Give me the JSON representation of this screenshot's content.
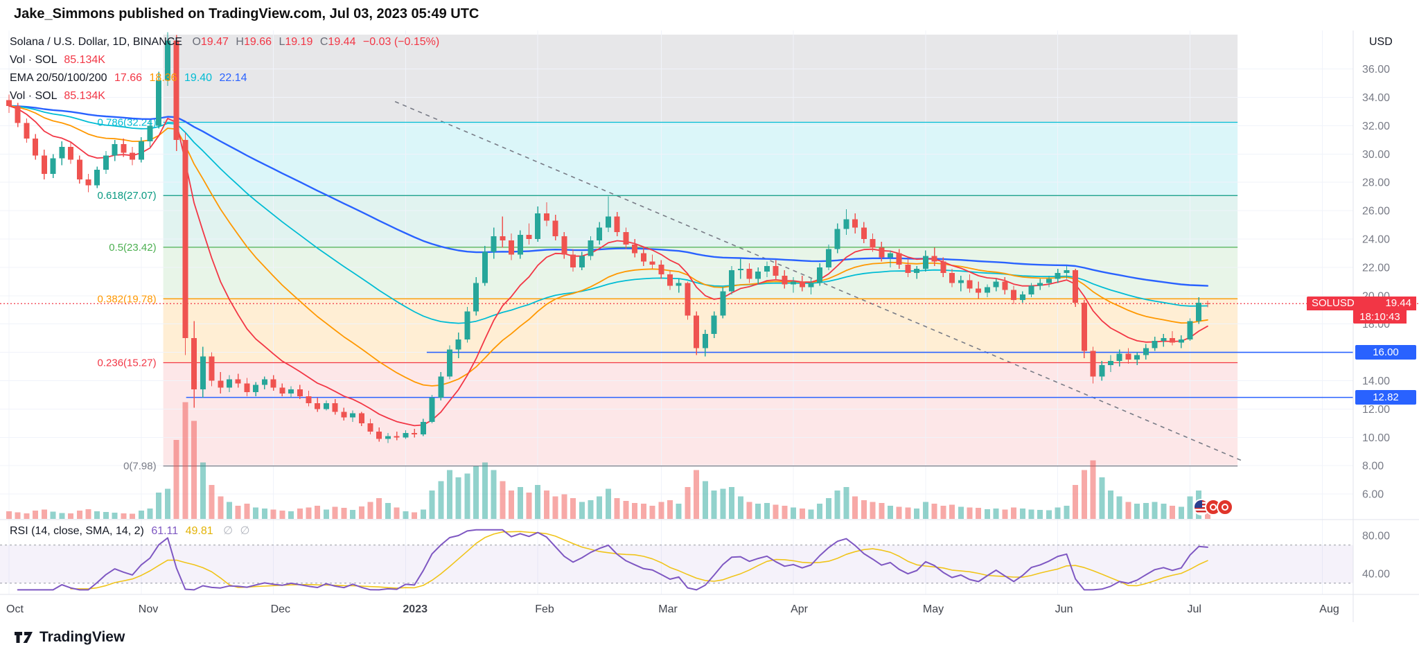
{
  "header": {
    "byline": "Jake_Simmons published on TradingView.com, Jul 03, 2023 05:49 UTC"
  },
  "footer": {
    "brand": "TradingView"
  },
  "legend": {
    "symbol": "Solana / U.S. Dollar, 1D, BINANCE",
    "o_label": "O",
    "o": "19.47",
    "h_label": "H",
    "h": "19.66",
    "l_label": "L",
    "l": "19.19",
    "c_label": "C",
    "c": "19.44",
    "change": "−0.03 (−0.15%)",
    "vol_label": "Vol · SOL",
    "vol": "85.134K",
    "ema_label": "EMA 20/50/100/200",
    "ema20": "17.66",
    "ema50": "18.36",
    "ema100": "19.40",
    "ema200": "22.14",
    "vol2_label": "Vol · SOL",
    "vol2": "85.134K"
  },
  "rsi_legend": {
    "label": "RSI (14, close, SMA, 14, 2)",
    "rsi": "61.11",
    "sma": "49.81",
    "empty1": "∅",
    "empty2": "∅"
  },
  "badges": {
    "symbol": "SOLUSD",
    "price": "19.44",
    "countdown": "18:10:43",
    "line1": "16.00",
    "line2": "12.82"
  },
  "axis": {
    "currency": "USD"
  },
  "colors": {
    "up": "#26a69a",
    "down": "#ef5350",
    "vol_up": "rgba(38,166,154,0.5)",
    "vol_down": "rgba(239,83,80,0.5)",
    "ema": [
      "#f23645",
      "#ff9800",
      "#00bcd4",
      "#2962ff"
    ],
    "fib_fills": [
      "rgba(120,123,134,0.18)",
      "rgba(0,188,212,0.14)",
      "rgba(8,153,129,0.12)",
      "rgba(76,175,80,0.13)",
      "rgba(255,152,0,0.17)",
      "rgba(242,54,69,0.12)"
    ],
    "line_blue": "#2962ff",
    "price_line": "#f23645",
    "rsi": "#7e57c2",
    "rsi_sma": "#f0c419",
    "rsi_band": "rgba(126,87,194,0.08)",
    "rsi_dash": "#9598a1",
    "grid": "#f0f3fa",
    "axis_text": "#787b86",
    "text": "#131722",
    "separator": "#e0e3eb",
    "trendline": "#787b86"
  },
  "chart_data": {
    "type": "candlestick",
    "title": "Solana / U.S. Dollar, 1D, BINANCE",
    "symbol": "SOLUSD",
    "exchange": "BINANCE",
    "interval": "1D",
    "quote_currency": "USD",
    "last": {
      "open": 19.47,
      "high": 19.66,
      "low": 19.19,
      "close": 19.44,
      "change": -0.03,
      "change_pct": -0.15
    },
    "current_price": 19.44,
    "countdown": "18:10:43",
    "volume_last_k": 85.134,
    "ema": {
      "periods": [
        20,
        50,
        100,
        200
      ],
      "values": [
        17.66,
        18.36,
        19.4,
        22.14
      ]
    },
    "rsi_indicator": {
      "length": 14,
      "source": "close",
      "smoothing": "SMA",
      "smoothing_length": 14,
      "value": 61.11,
      "sma_value": 49.81,
      "bands": [
        70,
        30
      ]
    },
    "price_axis_ticks": [
      36,
      34,
      32,
      30,
      28,
      26,
      24,
      22,
      20,
      18,
      16,
      14,
      12,
      10,
      8,
      6
    ],
    "rsi_axis_ticks": [
      80,
      40
    ],
    "time_ticks": [
      {
        "label": "Oct",
        "index": 0
      },
      {
        "label": "Nov",
        "index": 15
      },
      {
        "label": "Dec",
        "index": 30
      },
      {
        "label": "2023",
        "index": 45,
        "bold": true
      },
      {
        "label": "Feb",
        "index": 60
      },
      {
        "label": "Mar",
        "index": 74
      },
      {
        "label": "Apr",
        "index": 89
      },
      {
        "label": "May",
        "index": 104
      },
      {
        "label": "Jun",
        "index": 119
      },
      {
        "label": "Jul",
        "index": 134
      },
      {
        "label": "Aug",
        "index": 149
      }
    ],
    "fib_zone": {
      "i1": 17.5,
      "i2": 139.4
    },
    "fib_levels": [
      {
        "level": 0.786,
        "price": 32.24,
        "color": "#00bcd4"
      },
      {
        "level": 0.618,
        "price": 27.07,
        "color": "#089981"
      },
      {
        "level": 0.5,
        "price": 23.42,
        "color": "#4caf50"
      },
      {
        "level": 0.382,
        "price": 19.78,
        "color": "#ff9800"
      },
      {
        "level": 0.236,
        "price": 15.27,
        "color": "#f23645"
      },
      {
        "level": 0,
        "price": 7.98,
        "color": "#787b86"
      }
    ],
    "horizontal_lines": [
      {
        "price": 16.0,
        "start_index": 47.4,
        "label": "16.00"
      },
      {
        "price": 12.82,
        "start_index": 20.1,
        "label": "12.82"
      }
    ],
    "trendline": {
      "i1": 43.8,
      "p1": 33.7,
      "i2": 140.1,
      "p2": 8.3,
      "style": "dashed"
    },
    "candles": [
      [
        33.8,
        34.2,
        32.9,
        33.4
      ],
      [
        33.4,
        33.6,
        31.9,
        32.2
      ],
      [
        32.2,
        32.5,
        30.8,
        31.1
      ],
      [
        31.1,
        31.4,
        29.6,
        29.9
      ],
      [
        29.9,
        30.3,
        28.2,
        28.6
      ],
      [
        28.6,
        30.0,
        28.3,
        29.7
      ],
      [
        29.7,
        30.9,
        29.2,
        30.5
      ],
      [
        30.5,
        30.8,
        29.3,
        29.6
      ],
      [
        29.6,
        29.9,
        27.9,
        28.2
      ],
      [
        28.2,
        28.6,
        27.3,
        27.8
      ],
      [
        27.8,
        29.1,
        27.6,
        28.9
      ],
      [
        28.9,
        30.2,
        28.6,
        29.9
      ],
      [
        29.9,
        31.0,
        29.5,
        30.7
      ],
      [
        30.7,
        31.1,
        29.8,
        30.1
      ],
      [
        30.1,
        30.5,
        29.2,
        29.6
      ],
      [
        29.6,
        31.2,
        29.4,
        30.9
      ],
      [
        30.9,
        32.4,
        30.5,
        32.0
      ],
      [
        32.0,
        35.8,
        31.8,
        35.2
      ],
      [
        35.2,
        38.6,
        34.8,
        38.0
      ],
      [
        38.0,
        38.4,
        30.2,
        31.0
      ],
      [
        31.0,
        31.5,
        15.8,
        17.0
      ],
      [
        17.0,
        18.2,
        12.1,
        13.4
      ],
      [
        13.4,
        16.4,
        12.8,
        15.7
      ],
      [
        15.7,
        16.0,
        13.6,
        14.0
      ],
      [
        14.0,
        14.6,
        13.1,
        13.5
      ],
      [
        13.5,
        14.4,
        13.2,
        14.1
      ],
      [
        14.1,
        14.5,
        13.5,
        13.8
      ],
      [
        13.8,
        14.2,
        12.9,
        13.2
      ],
      [
        13.2,
        13.9,
        12.9,
        13.7
      ],
      [
        13.7,
        14.3,
        13.4,
        14.1
      ],
      [
        14.1,
        14.4,
        13.3,
        13.5
      ],
      [
        13.5,
        13.8,
        12.9,
        13.1
      ],
      [
        13.1,
        13.6,
        12.8,
        13.4
      ],
      [
        13.4,
        13.7,
        12.7,
        12.9
      ],
      [
        12.9,
        13.3,
        12.2,
        12.4
      ],
      [
        12.4,
        12.8,
        11.8,
        12.0
      ],
      [
        12.0,
        12.6,
        11.9,
        12.4
      ],
      [
        12.4,
        12.7,
        11.6,
        11.8
      ],
      [
        11.8,
        12.1,
        11.2,
        11.4
      ],
      [
        11.4,
        11.9,
        11.1,
        11.7
      ],
      [
        11.7,
        11.8,
        10.8,
        11.0
      ],
      [
        11.0,
        11.3,
        10.2,
        10.4
      ],
      [
        10.4,
        10.7,
        9.7,
        9.9
      ],
      [
        9.9,
        10.3,
        9.6,
        10.1
      ],
      [
        10.1,
        10.4,
        9.8,
        10.0
      ],
      [
        10.0,
        10.5,
        9.9,
        10.3
      ],
      [
        10.3,
        10.6,
        10.0,
        10.2
      ],
      [
        10.2,
        11.3,
        10.1,
        11.1
      ],
      [
        11.1,
        13.0,
        11.0,
        12.8
      ],
      [
        12.8,
        14.6,
        12.6,
        14.3
      ],
      [
        14.3,
        16.5,
        14.1,
        16.2
      ],
      [
        16.2,
        17.4,
        15.6,
        16.9
      ],
      [
        16.9,
        19.2,
        16.7,
        18.9
      ],
      [
        18.9,
        21.3,
        18.6,
        20.9
      ],
      [
        20.9,
        23.5,
        20.7,
        23.1
      ],
      [
        23.1,
        24.8,
        22.6,
        24.2
      ],
      [
        24.2,
        25.6,
        23.4,
        23.9
      ],
      [
        23.9,
        24.4,
        22.5,
        22.9
      ],
      [
        22.9,
        24.6,
        22.6,
        24.3
      ],
      [
        24.3,
        25.1,
        23.6,
        24.0
      ],
      [
        24.0,
        26.3,
        23.8,
        25.8
      ],
      [
        25.8,
        26.6,
        24.9,
        25.3
      ],
      [
        25.3,
        25.7,
        23.9,
        24.2
      ],
      [
        24.2,
        24.5,
        22.6,
        22.9
      ],
      [
        22.9,
        23.3,
        21.7,
        22.0
      ],
      [
        22.0,
        23.1,
        21.8,
        22.8
      ],
      [
        22.8,
        24.2,
        22.5,
        23.9
      ],
      [
        23.9,
        25.2,
        23.6,
        24.8
      ],
      [
        24.8,
        27.0,
        24.5,
        25.6
      ],
      [
        25.6,
        25.9,
        24.2,
        24.5
      ],
      [
        24.5,
        24.8,
        23.3,
        23.6
      ],
      [
        23.6,
        24.0,
        22.7,
        23.0
      ],
      [
        23.0,
        23.4,
        22.1,
        22.4
      ],
      [
        22.4,
        22.9,
        21.9,
        22.2
      ],
      [
        22.2,
        22.5,
        21.2,
        21.5
      ],
      [
        21.5,
        21.8,
        20.4,
        20.7
      ],
      [
        20.7,
        21.2,
        20.2,
        20.9
      ],
      [
        20.9,
        21.0,
        18.3,
        18.6
      ],
      [
        18.6,
        18.9,
        15.8,
        16.3
      ],
      [
        16.3,
        17.6,
        15.7,
        17.3
      ],
      [
        17.3,
        18.9,
        17.0,
        18.6
      ],
      [
        18.6,
        20.6,
        18.4,
        20.3
      ],
      [
        20.3,
        22.1,
        20.1,
        21.8
      ],
      [
        21.8,
        22.6,
        21.2,
        21.9
      ],
      [
        21.9,
        22.3,
        20.9,
        21.2
      ],
      [
        21.2,
        22.0,
        20.8,
        21.7
      ],
      [
        21.7,
        22.4,
        21.3,
        22.1
      ],
      [
        22.1,
        22.5,
        21.1,
        21.4
      ],
      [
        21.4,
        21.8,
        20.5,
        20.8
      ],
      [
        20.8,
        21.3,
        20.2,
        21.0
      ],
      [
        21.0,
        21.4,
        20.3,
        20.6
      ],
      [
        20.6,
        21.2,
        20.1,
        20.9
      ],
      [
        20.9,
        22.3,
        20.7,
        22.0
      ],
      [
        22.0,
        23.6,
        21.8,
        23.3
      ],
      [
        23.3,
        25.1,
        23.0,
        24.7
      ],
      [
        24.7,
        26.1,
        24.3,
        25.4
      ],
      [
        25.4,
        25.8,
        24.4,
        24.8
      ],
      [
        24.8,
        25.2,
        23.7,
        24.0
      ],
      [
        24.0,
        24.4,
        23.1,
        23.4
      ],
      [
        23.4,
        23.8,
        22.4,
        22.7
      ],
      [
        22.7,
        23.2,
        22.0,
        23.0
      ],
      [
        23.0,
        23.3,
        21.9,
        22.2
      ],
      [
        22.2,
        22.6,
        21.3,
        21.6
      ],
      [
        21.6,
        22.1,
        21.2,
        21.9
      ],
      [
        21.9,
        23.2,
        21.7,
        22.8
      ],
      [
        22.8,
        23.4,
        22.1,
        22.4
      ],
      [
        22.4,
        22.7,
        21.3,
        21.6
      ],
      [
        21.6,
        21.9,
        20.6,
        20.9
      ],
      [
        20.9,
        21.4,
        20.3,
        21.1
      ],
      [
        21.1,
        21.5,
        20.2,
        20.5
      ],
      [
        20.5,
        21.0,
        19.8,
        20.2
      ],
      [
        20.2,
        20.8,
        19.9,
        20.6
      ],
      [
        20.6,
        21.2,
        20.3,
        21.0
      ],
      [
        21.0,
        21.3,
        20.1,
        20.4
      ],
      [
        20.4,
        20.7,
        19.4,
        19.7
      ],
      [
        19.7,
        20.3,
        19.5,
        20.1
      ],
      [
        20.1,
        20.9,
        19.9,
        20.7
      ],
      [
        20.7,
        21.2,
        20.4,
        20.9
      ],
      [
        20.9,
        21.4,
        20.6,
        21.2
      ],
      [
        21.2,
        21.9,
        20.9,
        21.6
      ],
      [
        21.6,
        22.1,
        21.2,
        21.8
      ],
      [
        21.8,
        21.9,
        19.2,
        19.5
      ],
      [
        19.5,
        19.7,
        15.6,
        16.1
      ],
      [
        16.1,
        16.4,
        13.8,
        14.3
      ],
      [
        14.3,
        15.4,
        14.0,
        15.1
      ],
      [
        15.1,
        15.8,
        14.6,
        15.4
      ],
      [
        15.4,
        16.2,
        15.0,
        15.9
      ],
      [
        15.9,
        16.3,
        15.2,
        15.5
      ],
      [
        15.5,
        16.0,
        15.1,
        15.8
      ],
      [
        15.8,
        16.6,
        15.5,
        16.3
      ],
      [
        16.3,
        17.1,
        16.1,
        16.8
      ],
      [
        16.8,
        17.3,
        16.4,
        17.0
      ],
      [
        17.0,
        17.5,
        16.5,
        16.7
      ],
      [
        16.7,
        17.2,
        16.3,
        16.9
      ],
      [
        16.9,
        18.4,
        16.8,
        18.2
      ],
      [
        18.2,
        19.9,
        18.0,
        19.5
      ],
      [
        19.47,
        19.66,
        19.19,
        19.44
      ]
    ],
    "volumes_k": [
      40,
      35,
      30,
      45,
      50,
      38,
      32,
      30,
      44,
      52,
      40,
      36,
      33,
      30,
      28,
      45,
      55,
      140,
      160,
      420,
      620,
      520,
      300,
      180,
      120,
      90,
      70,
      80,
      60,
      55,
      50,
      45,
      40,
      55,
      60,
      70,
      50,
      65,
      58,
      48,
      66,
      90,
      110,
      85,
      60,
      40,
      35,
      50,
      150,
      200,
      260,
      220,
      240,
      280,
      300,
      260,
      200,
      150,
      170,
      140,
      180,
      150,
      120,
      130,
      110,
      90,
      100,
      120,
      160,
      110,
      95,
      85,
      80,
      70,
      90,
      100,
      80,
      170,
      260,
      200,
      150,
      160,
      170,
      120,
      90,
      80,
      85,
      75,
      70,
      60,
      55,
      50,
      80,
      110,
      150,
      170,
      120,
      100,
      90,
      85,
      70,
      65,
      60,
      55,
      90,
      80,
      70,
      75,
      65,
      60,
      58,
      52,
      55,
      50,
      60,
      55,
      50,
      48,
      46,
      60,
      70,
      180,
      260,
      310,
      220,
      150,
      120,
      90,
      80,
      85,
      90,
      80,
      70,
      65,
      120,
      150,
      85.134
    ]
  }
}
